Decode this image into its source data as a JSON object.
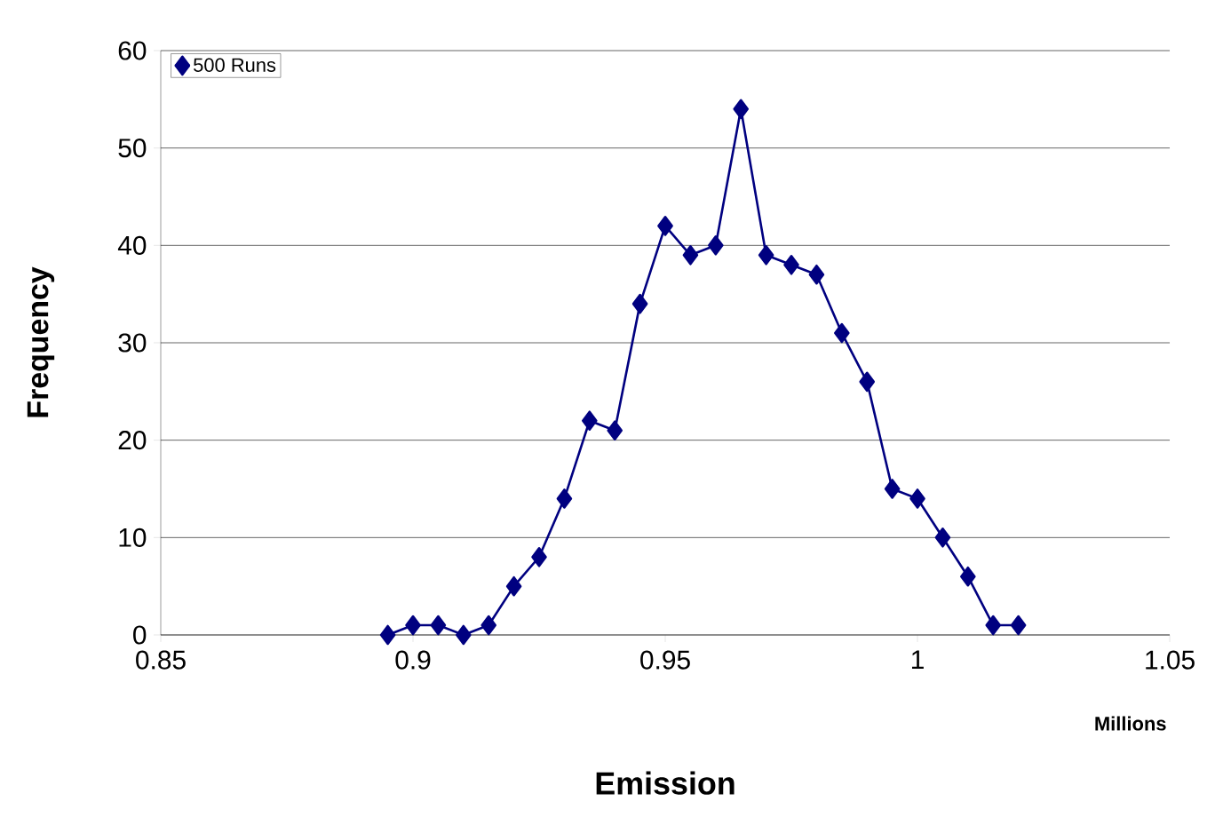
{
  "chart_data": {
    "type": "line",
    "xlabel": "Emission",
    "ylabel": "Frequency",
    "annotations": [
      "Millions"
    ],
    "x": [
      0.895,
      0.9,
      0.905,
      0.91,
      0.915,
      0.92,
      0.925,
      0.93,
      0.935,
      0.94,
      0.945,
      0.95,
      0.955,
      0.96,
      0.965,
      0.97,
      0.975,
      0.98,
      0.985,
      0.99,
      0.995,
      1.0,
      1.005,
      1.01,
      1.015,
      1.02
    ],
    "series": [
      {
        "name": "500 Runs",
        "color": "#000080",
        "values": [
          0,
          1,
          1,
          0,
          1,
          5,
          8,
          14,
          22,
          21,
          34,
          42,
          39,
          40,
          54,
          39,
          38,
          37,
          31,
          26,
          15,
          14,
          10,
          6,
          1,
          1
        ]
      }
    ],
    "xlim": [
      0.85,
      1.05
    ],
    "xticks": [
      0.85,
      0.9,
      0.95,
      1,
      1.05
    ],
    "ylim": [
      0,
      60
    ],
    "yticks": [
      0,
      10,
      20,
      30,
      40,
      50,
      60
    ],
    "grid": "y",
    "legend": "top left",
    "marker": "diamond",
    "line_style": "solid"
  }
}
